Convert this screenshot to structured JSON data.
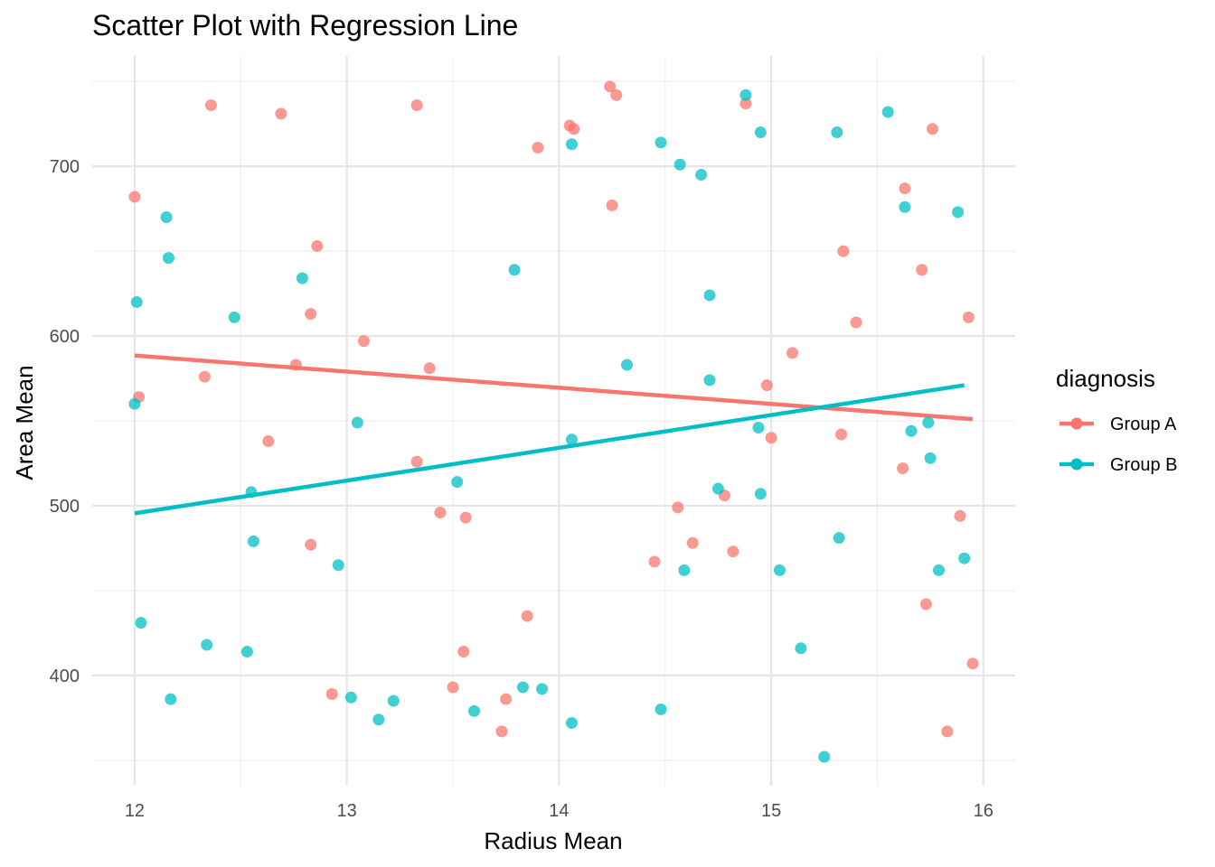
{
  "chart_data": {
    "type": "scatter",
    "title": "Scatter Plot with Regression Line",
    "xlabel": "Radius Mean",
    "ylabel": "Area Mean",
    "xlim": [
      11.8,
      16.15
    ],
    "ylim": [
      335,
      765
    ],
    "x_ticks": [
      12,
      13,
      14,
      15,
      16
    ],
    "x_tick_labels": [
      "12",
      "13",
      "14",
      "15",
      "16"
    ],
    "y_ticks": [
      400,
      500,
      600,
      700
    ],
    "y_tick_labels": [
      "400",
      "500",
      "600",
      "700"
    ],
    "grid": true,
    "legend": {
      "title": "diagnosis",
      "position": "right"
    },
    "series": [
      {
        "name": "Group A",
        "color": "#F8766D",
        "points": [
          [
            12.0,
            682
          ],
          [
            12.02,
            564
          ],
          [
            12.33,
            576
          ],
          [
            12.36,
            736
          ],
          [
            12.63,
            538
          ],
          [
            12.69,
            731
          ],
          [
            12.76,
            583
          ],
          [
            12.83,
            613
          ],
          [
            12.83,
            477
          ],
          [
            12.86,
            653
          ],
          [
            12.93,
            389
          ],
          [
            13.08,
            597
          ],
          [
            13.33,
            736
          ],
          [
            13.33,
            526
          ],
          [
            13.39,
            581
          ],
          [
            13.44,
            496
          ],
          [
            13.5,
            393
          ],
          [
            13.55,
            414
          ],
          [
            13.56,
            493
          ],
          [
            13.73,
            367
          ],
          [
            13.75,
            386
          ],
          [
            13.85,
            435
          ],
          [
            13.9,
            711
          ],
          [
            14.05,
            724
          ],
          [
            14.07,
            722
          ],
          [
            14.24,
            747
          ],
          [
            14.25,
            677
          ],
          [
            14.27,
            742
          ],
          [
            14.45,
            467
          ],
          [
            14.56,
            499
          ],
          [
            14.63,
            478
          ],
          [
            14.78,
            506
          ],
          [
            14.82,
            473
          ],
          [
            14.88,
            737
          ],
          [
            14.98,
            571
          ],
          [
            15.0,
            540
          ],
          [
            15.1,
            590
          ],
          [
            15.33,
            542
          ],
          [
            15.34,
            650
          ],
          [
            15.4,
            608
          ],
          [
            15.62,
            522
          ],
          [
            15.63,
            687
          ],
          [
            15.71,
            639
          ],
          [
            15.73,
            442
          ],
          [
            15.76,
            722
          ],
          [
            15.83,
            367
          ],
          [
            15.89,
            494
          ],
          [
            15.93,
            611
          ],
          [
            15.95,
            407
          ]
        ],
        "regression": {
          "x": [
            12.0,
            15.95
          ],
          "y": [
            588.5,
            551
          ]
        }
      },
      {
        "name": "Group B",
        "color": "#00BFC4",
        "points": [
          [
            12.0,
            560
          ],
          [
            12.01,
            620
          ],
          [
            12.03,
            431
          ],
          [
            12.15,
            670
          ],
          [
            12.16,
            646
          ],
          [
            12.17,
            386
          ],
          [
            12.34,
            418
          ],
          [
            12.47,
            611
          ],
          [
            12.53,
            414
          ],
          [
            12.55,
            508
          ],
          [
            12.56,
            479
          ],
          [
            12.79,
            634
          ],
          [
            12.96,
            465
          ],
          [
            13.02,
            387
          ],
          [
            13.05,
            549
          ],
          [
            13.15,
            374
          ],
          [
            13.22,
            385
          ],
          [
            13.52,
            514
          ],
          [
            13.6,
            379
          ],
          [
            13.79,
            639
          ],
          [
            13.83,
            393
          ],
          [
            13.92,
            392
          ],
          [
            14.06,
            713
          ],
          [
            14.06,
            539
          ],
          [
            14.06,
            372
          ],
          [
            14.32,
            583
          ],
          [
            14.48,
            714
          ],
          [
            14.48,
            380
          ],
          [
            14.57,
            701
          ],
          [
            14.59,
            462
          ],
          [
            14.67,
            695
          ],
          [
            14.71,
            574
          ],
          [
            14.71,
            624
          ],
          [
            14.75,
            510
          ],
          [
            14.88,
            742
          ],
          [
            14.94,
            546
          ],
          [
            14.95,
            720
          ],
          [
            14.95,
            507
          ],
          [
            15.04,
            462
          ],
          [
            15.14,
            416
          ],
          [
            15.25,
            352
          ],
          [
            15.31,
            720
          ],
          [
            15.32,
            481
          ],
          [
            15.55,
            732
          ],
          [
            15.63,
            676
          ],
          [
            15.66,
            544
          ],
          [
            15.74,
            549
          ],
          [
            15.75,
            528
          ],
          [
            15.79,
            462
          ],
          [
            15.88,
            673
          ],
          [
            15.91,
            469
          ]
        ],
        "regression": {
          "x": [
            12.0,
            15.91
          ],
          "y": [
            495.5,
            571
          ]
        }
      }
    ]
  }
}
